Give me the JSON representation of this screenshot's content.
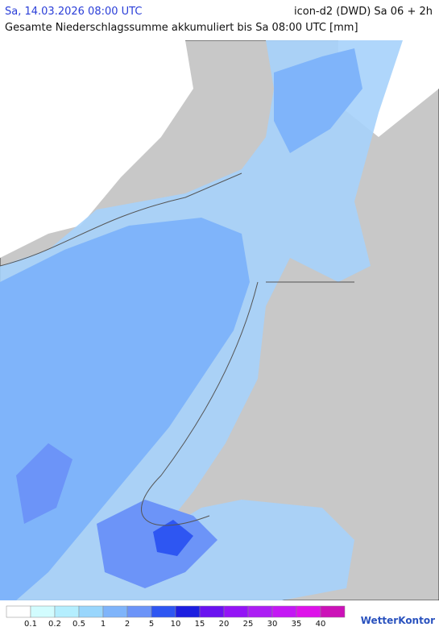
{
  "header": {
    "datetime": "Sa, 14.03.2026 08:00 UTC",
    "model": "icon-d2 (DWD) Sa 06 + 2h",
    "title": "Gesamte Niederschlagssumme akkumuliert bis Sa 08:00 UTC [mm]"
  },
  "legend": {
    "colors": [
      "#ffffff",
      "#d2fcfe",
      "#b4eefe",
      "#99d6fc",
      "#7fb4fa",
      "#6c94f8",
      "#2e56f2",
      "#1c1ee0",
      "#6a12f0",
      "#9414f6",
      "#ac1ef4",
      "#c418f4",
      "#de12ea",
      "#cc12b8"
    ],
    "labels": [
      "0.1",
      "0.2",
      "0.5",
      "1",
      "2",
      "5",
      "10",
      "15",
      "20",
      "25",
      "30",
      "35",
      "40"
    ]
  },
  "logo": "WetterKontor"
}
